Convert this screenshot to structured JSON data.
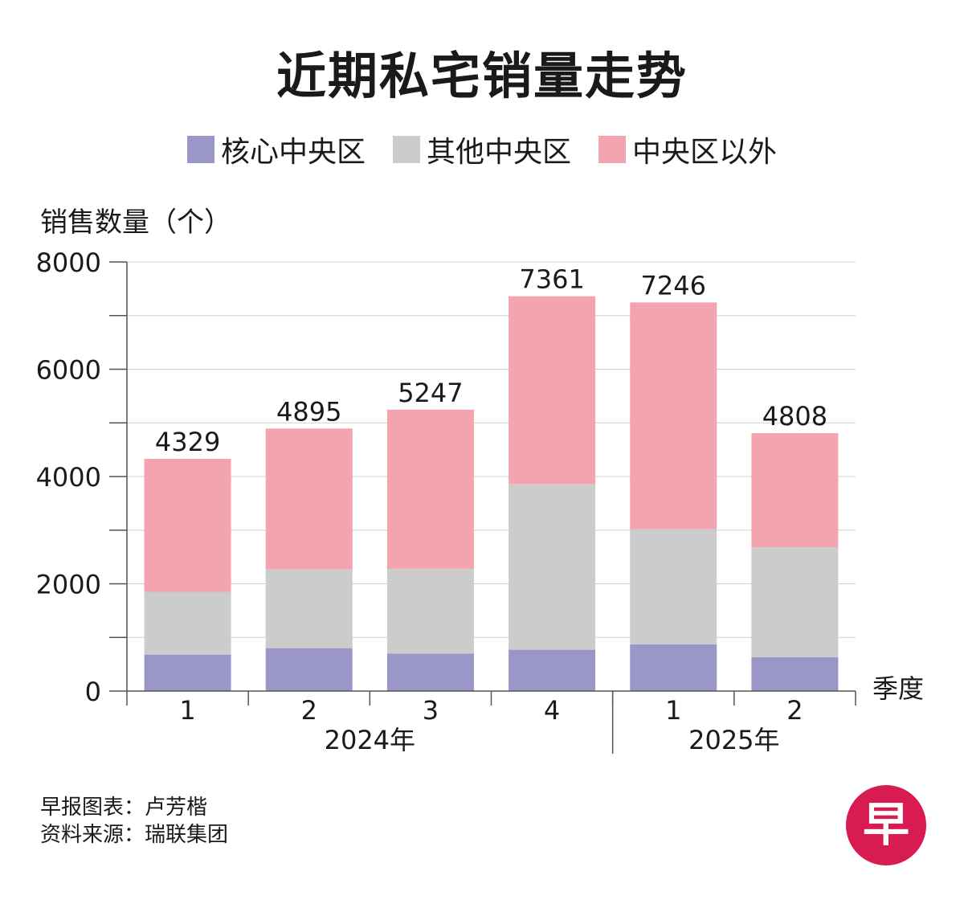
{
  "title": "近期私宅销量走势",
  "legend": [
    {
      "label": "核心中央区",
      "color": "#9b96c8"
    },
    {
      "label": "其他中央区",
      "color": "#cccccc"
    },
    {
      "label": "中央区以外",
      "color": "#f4a4ae"
    }
  ],
  "chart_data": {
    "type": "bar",
    "stacked": true,
    "title": "近期私宅销量走势",
    "ylabel": "销售数量（个）",
    "xlabel": "季度",
    "ylim": [
      0,
      8000
    ],
    "yticks": [
      0,
      2000,
      4000,
      6000,
      8000
    ],
    "grid": true,
    "legend_position": "top",
    "categories": [
      "1",
      "2",
      "3",
      "4",
      "1",
      "2"
    ],
    "groups": [
      {
        "label": "2024年",
        "categories": [
          "1",
          "2",
          "3",
          "4"
        ]
      },
      {
        "label": "2025年",
        "categories": [
          "1",
          "2"
        ]
      }
    ],
    "series": [
      {
        "name": "核心中央区",
        "color": "#9b96c8",
        "values": [
          680,
          800,
          700,
          770,
          870,
          630
        ]
      },
      {
        "name": "其他中央区",
        "color": "#cccccc",
        "values": [
          1170,
          1470,
          1580,
          3090,
          2150,
          2050
        ]
      },
      {
        "name": "中央区以外",
        "color": "#f4a4ae",
        "values": [
          2479,
          2625,
          2967,
          3501,
          4226,
          2128
        ]
      }
    ],
    "totals": [
      4329,
      4895,
      5247,
      7361,
      7246,
      4808
    ]
  },
  "footer": {
    "credit": "早报图表：卢芳楷",
    "source": "资料来源：瑞联集团"
  },
  "logo": {
    "text": "早",
    "color": "#d81b50"
  }
}
